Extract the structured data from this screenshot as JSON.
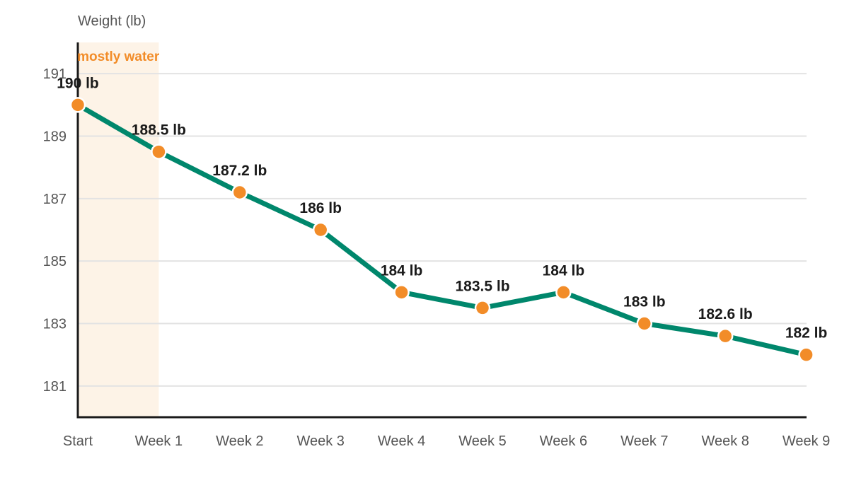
{
  "chart_data": {
    "type": "line",
    "ylabel": "Weight (lb)",
    "categories": [
      "Start",
      "Week 1",
      "Week 2",
      "Week 3",
      "Week 4",
      "Week 5",
      "Week 6",
      "Week 7",
      "Week 8",
      "Week 9"
    ],
    "series": [
      {
        "values": [
          190,
          188.5,
          187.2,
          186,
          184,
          183.5,
          184,
          183,
          182.6,
          182
        ]
      }
    ],
    "data_labels": [
      "190 lb",
      "188.5 lb",
      "187.2 lb",
      "186 lb",
      "184 lb",
      "183.5 lb",
      "184 lb",
      "183 lb",
      "182.6 lb",
      "182 lb"
    ],
    "yticks": [
      181,
      183,
      185,
      187,
      189,
      191
    ],
    "ylim": [
      180,
      192
    ],
    "grid": true,
    "legend": "none",
    "annotation": {
      "text": "mostly water",
      "x_from": "Start",
      "x_to": "Week 1"
    },
    "colors": {
      "line": "#00876c",
      "marker": "#f28c28",
      "marker_stroke": "#ffffff",
      "highlight": "#fdf3e7",
      "annotation": "#f28c28",
      "grid": "#e3e3e3",
      "axis": "#1a1a1a"
    }
  }
}
